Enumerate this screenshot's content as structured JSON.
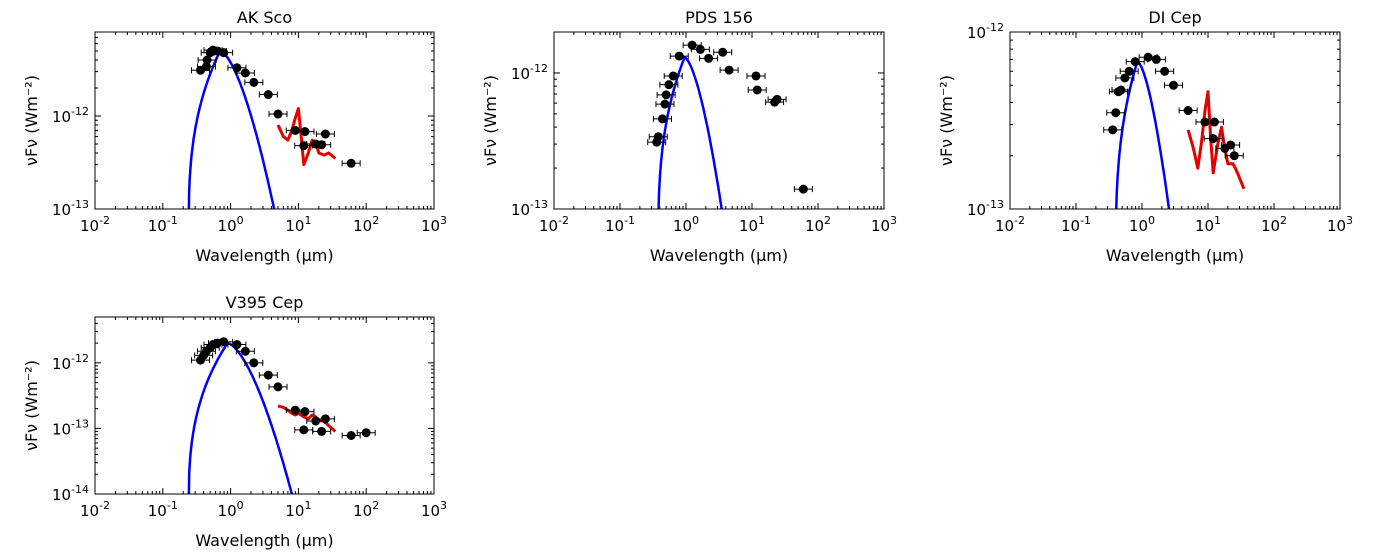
{
  "figure": {
    "x_unit": "μm"
  },
  "chart_data": [
    {
      "type": "scatter",
      "title": "AK Sco",
      "xlabel": "Wavelength (μm)",
      "ylabel": "νFν (Wm⁻²)",
      "xscale": "log",
      "yscale": "log",
      "xlim": [
        0.01,
        1000
      ],
      "ylim": [
        1e-13,
        8e-12
      ],
      "xticks": [
        0.01,
        0.1,
        1,
        10,
        100,
        1000
      ],
      "yticks": [
        1e-13,
        1e-12
      ],
      "photometry": {
        "x": [
          0.36,
          0.44,
          0.45,
          0.5,
          0.55,
          0.64,
          0.79,
          1.24,
          1.65,
          2.2,
          3.6,
          5.0,
          9.0,
          12,
          12.5,
          18,
          22,
          25,
          60
        ],
        "y": [
          3.1e-12,
          3.4e-12,
          4e-12,
          4.8e-12,
          5.1e-12,
          5e-12,
          4.8e-12,
          3.3e-12,
          2.9e-12,
          2.3e-12,
          1.7e-12,
          1.05e-12,
          7e-13,
          4.8e-13,
          6.8e-13,
          5e-13,
          4.9e-13,
          6.4e-13,
          3.1e-13
        ]
      },
      "stellar_model": {
        "peak_x": 0.7,
        "peak_y": 5e-12,
        "cutoff_x": 0.24,
        "end_x": 5.0
      },
      "spectrum": {
        "x": [
          5,
          6,
          7,
          8,
          9,
          10,
          11,
          12,
          14,
          16,
          18,
          20,
          24,
          28,
          35
        ],
        "y": [
          8e-13,
          6e-13,
          5.5e-13,
          7e-13,
          9.5e-13,
          1.2e-12,
          6e-13,
          3e-13,
          4e-13,
          5.5e-13,
          5.2e-13,
          4e-13,
          3.8e-13,
          4e-13,
          3.5e-13
        ]
      }
    },
    {
      "type": "scatter",
      "title": "PDS 156",
      "xlabel": "Wavelength (μm)",
      "ylabel": "νFν (Wm⁻²)",
      "xscale": "log",
      "yscale": "log",
      "xlim": [
        0.01,
        1000
      ],
      "ylim": [
        1e-13,
        2e-12
      ],
      "xticks": [
        0.01,
        0.1,
        1,
        10,
        100,
        1000
      ],
      "yticks": [
        1e-13,
        1e-12
      ],
      "photometry": {
        "x": [
          0.36,
          0.38,
          0.44,
          0.48,
          0.5,
          0.55,
          0.64,
          0.79,
          1.24,
          1.65,
          2.2,
          3.6,
          4.5,
          11.5,
          12,
          22,
          24,
          60
        ],
        "y": [
          3.1e-13,
          3.4e-13,
          4.6e-13,
          5.9e-13,
          6.9e-13,
          8.2e-13,
          9.5e-13,
          1.33e-12,
          1.6e-12,
          1.49e-12,
          1.28e-12,
          1.42e-12,
          1.05e-12,
          9.5e-13,
          7.5e-13,
          6.1e-13,
          6.4e-13,
          1.4e-13
        ]
      },
      "stellar_model": {
        "peak_x": 0.95,
        "peak_y": 1.3e-12,
        "cutoff_x": 0.38,
        "end_x": 4.0
      },
      "spectrum": null
    },
    {
      "type": "scatter",
      "title": "DI Cep",
      "xlabel": "Wavelength (μm)",
      "ylabel": "νFν (Wm⁻²)",
      "xscale": "log",
      "yscale": "log",
      "xlim": [
        0.01,
        1000
      ],
      "ylim": [
        1e-13,
        1e-12
      ],
      "xticks": [
        0.01,
        0.1,
        1,
        10,
        100,
        1000
      ],
      "yticks": [
        1e-13,
        1e-12
      ],
      "photometry": {
        "x": [
          0.36,
          0.4,
          0.44,
          0.48,
          0.55,
          0.64,
          0.79,
          1.24,
          1.65,
          2.2,
          3.0,
          5.0,
          9,
          12,
          12.5,
          18,
          22,
          25
        ],
        "y": [
          2.8e-13,
          3.5e-13,
          4.6e-13,
          4.7e-13,
          5.5e-13,
          6e-13,
          6.8e-13,
          7.2e-13,
          7e-13,
          6e-13,
          5e-13,
          3.6e-13,
          3.1e-13,
          2.5e-13,
          3.1e-13,
          2.2e-13,
          2.3e-13,
          2e-13
        ]
      },
      "stellar_model": {
        "peak_x": 0.85,
        "peak_y": 6.8e-13,
        "cutoff_x": 0.4,
        "end_x": 3.0
      },
      "spectrum": {
        "x": [
          5,
          6,
          7,
          8,
          9,
          10,
          11,
          12,
          14,
          16,
          18,
          20,
          24,
          28,
          35
        ],
        "y": [
          2.8e-13,
          2.2e-13,
          1.7e-13,
          2.4e-13,
          3.6e-13,
          4.6e-13,
          2.5e-13,
          1.6e-13,
          2.3e-13,
          2.9e-13,
          2.2e-13,
          1.8e-13,
          1.8e-13,
          1.6e-13,
          1.3e-13
        ]
      }
    },
    {
      "type": "scatter",
      "title": "V395 Cep",
      "xlabel": "Wavelength (μm)",
      "ylabel": "νFν (Wm⁻²)",
      "xscale": "log",
      "yscale": "log",
      "xlim": [
        0.01,
        1000
      ],
      "ylim": [
        1e-14,
        5e-12
      ],
      "xticks": [
        0.01,
        0.1,
        1,
        10,
        100,
        1000
      ],
      "yticks": [
        1e-14,
        1e-13,
        1e-12
      ],
      "photometry": {
        "x": [
          0.36,
          0.4,
          0.44,
          0.5,
          0.55,
          0.64,
          0.79,
          1.24,
          1.65,
          2.2,
          3.6,
          5.0,
          9.0,
          12,
          12.5,
          18,
          22,
          25,
          60,
          100
        ],
        "y": [
          1.1e-12,
          1.3e-12,
          1.5e-12,
          1.7e-12,
          1.9e-12,
          2e-12,
          2.1e-12,
          1.9e-12,
          1.5e-12,
          1e-12,
          6.5e-13,
          4.3e-13,
          1.9e-13,
          9.5e-14,
          1.8e-13,
          1.3e-13,
          9e-14,
          1.4e-13,
          7.8e-14,
          8.6e-14
        ]
      },
      "stellar_model": {
        "peak_x": 0.9,
        "peak_y": 2e-12,
        "cutoff_x": 0.24,
        "end_x": 9.0
      },
      "spectrum": {
        "x": [
          5,
          6,
          7,
          8,
          9,
          10,
          12,
          14,
          16,
          18,
          20,
          24,
          28,
          35
        ],
        "y": [
          2.2e-13,
          2.1e-13,
          1.9e-13,
          1.7e-13,
          1.6e-13,
          1.7e-13,
          1.5e-13,
          1.4e-13,
          1.6e-13,
          1.5e-13,
          1.3e-13,
          1.3e-13,
          1.1e-13,
          9e-14
        ]
      }
    }
  ],
  "colors": {
    "model": "#0000ff",
    "spectrum": "#e50000",
    "photometry": "#000000",
    "axes": "#000000"
  }
}
